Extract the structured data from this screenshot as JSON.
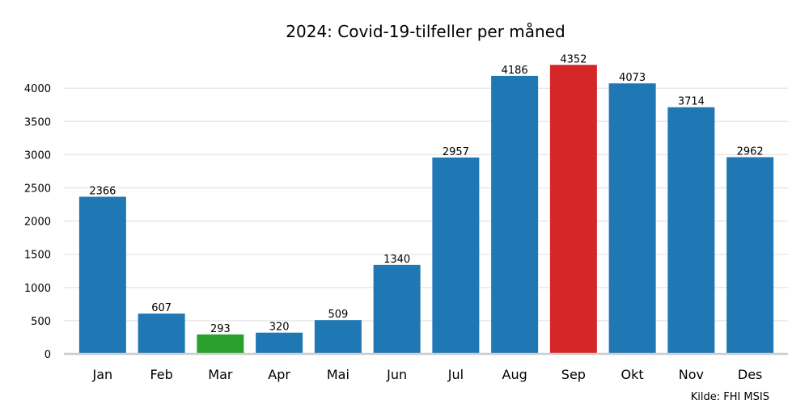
{
  "chart_data": {
    "type": "bar",
    "title": "2024: Covid-19-tilfeller per måned",
    "xlabel": "",
    "ylabel": "",
    "categories": [
      "Jan",
      "Feb",
      "Mar",
      "Apr",
      "Mai",
      "Jun",
      "Jul",
      "Aug",
      "Sep",
      "Okt",
      "Nov",
      "Des"
    ],
    "values": [
      2366,
      607,
      293,
      320,
      509,
      1340,
      2957,
      4186,
      4352,
      4073,
      3714,
      2962
    ],
    "bar_colors": [
      "#1f77b4",
      "#1f77b4",
      "#2ca02c",
      "#1f77b4",
      "#1f77b4",
      "#1f77b4",
      "#1f77b4",
      "#1f77b4",
      "#d62728",
      "#1f77b4",
      "#1f77b4",
      "#1f77b4"
    ],
    "yticks": [
      "0",
      "500",
      "1000",
      "1500",
      "2000",
      "2500",
      "3000",
      "3500",
      "4000"
    ],
    "ylim": [
      0,
      4570
    ],
    "grid": true,
    "data_labels": true,
    "source": "Kilde: FHI MSIS"
  }
}
